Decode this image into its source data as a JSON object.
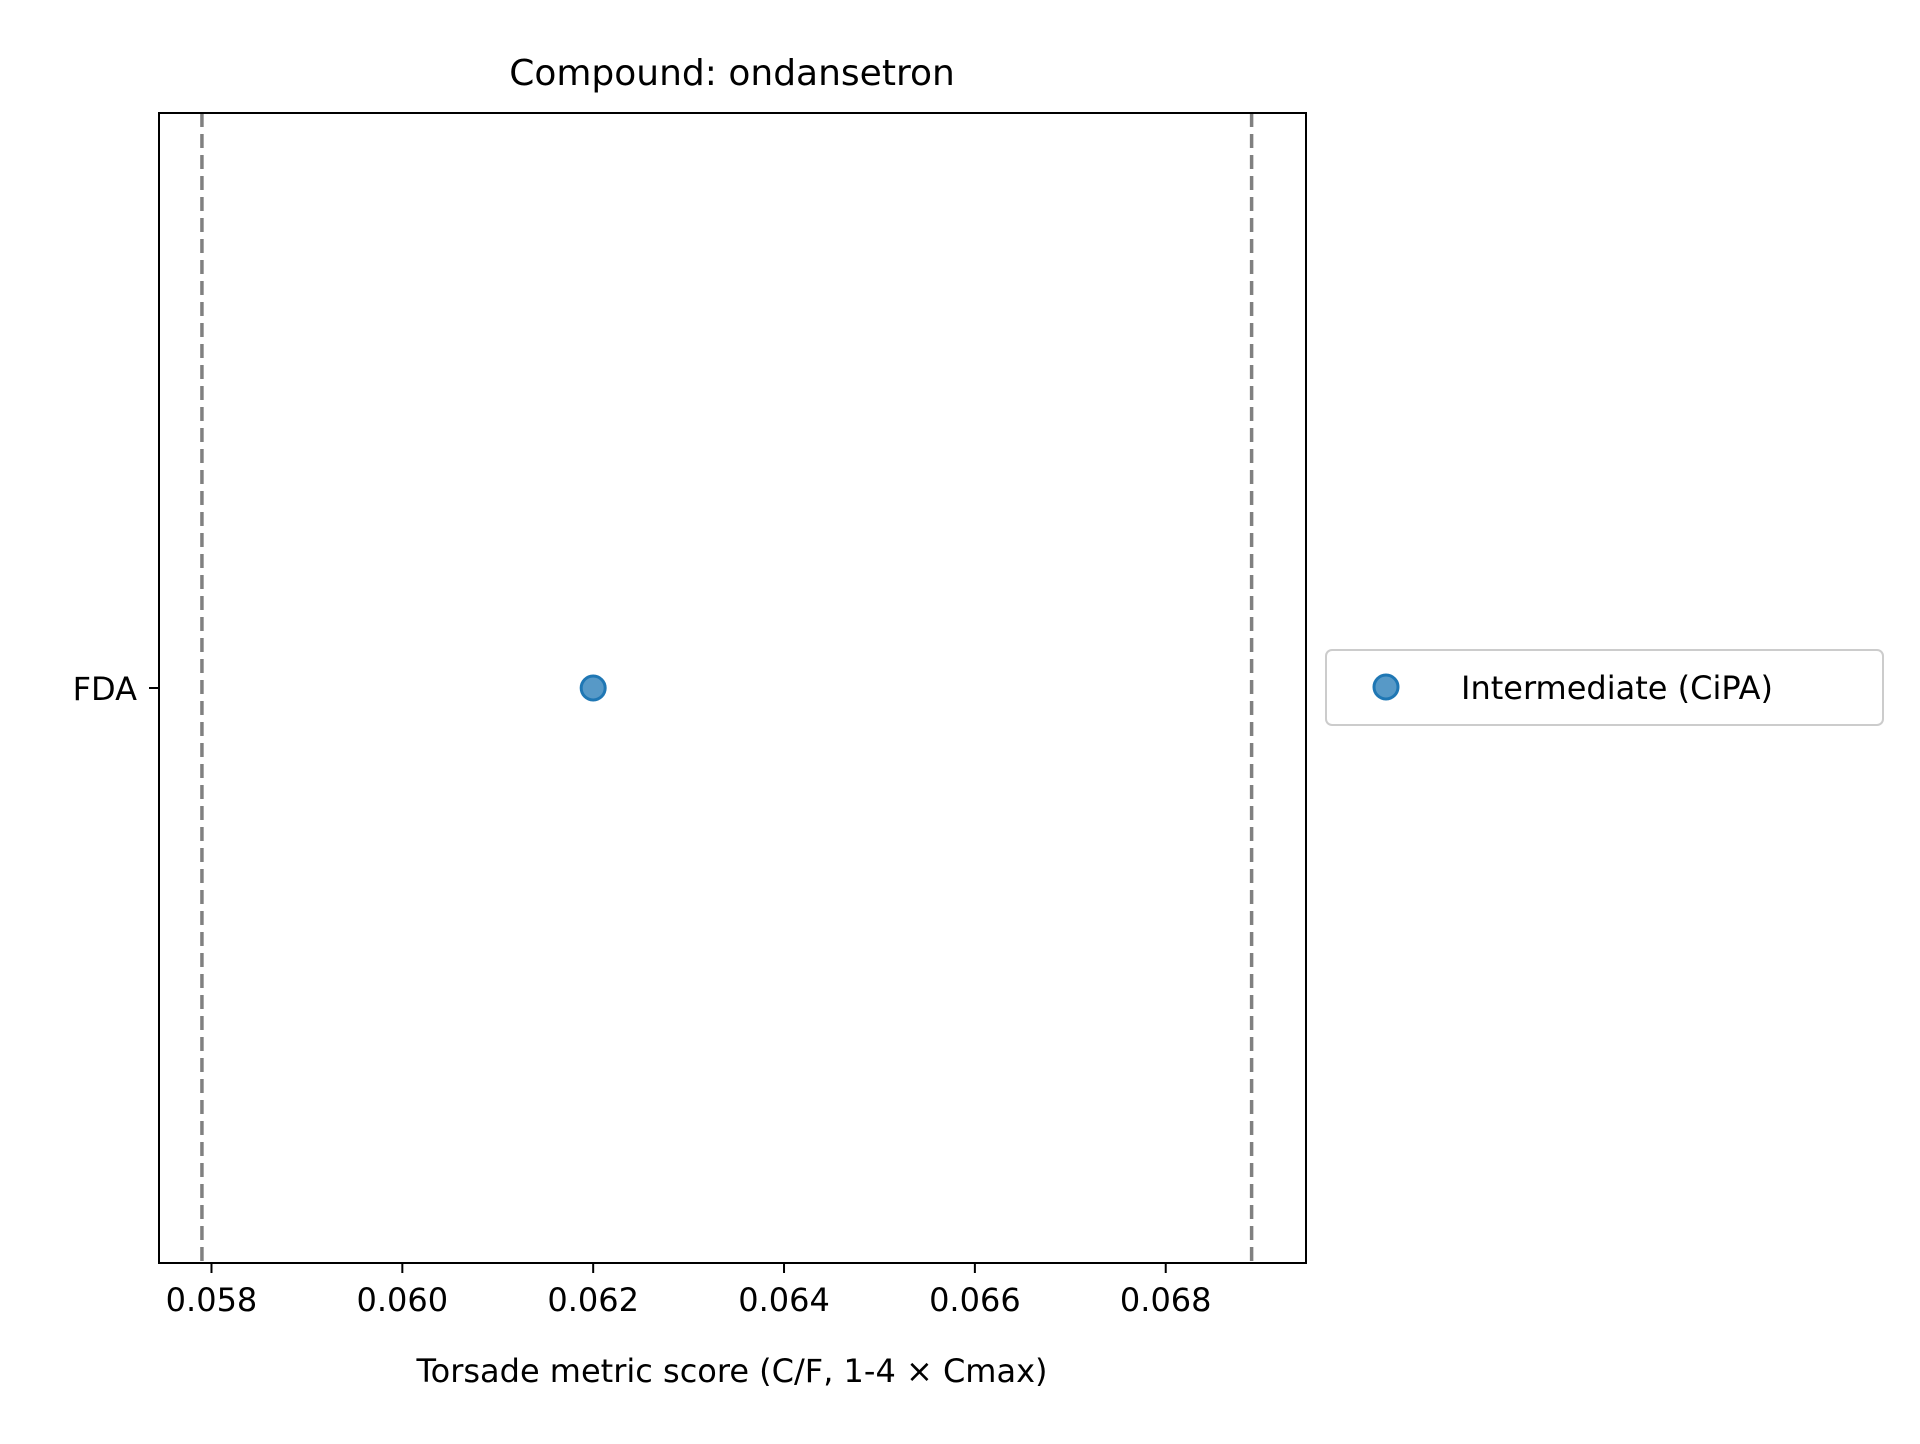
{
  "chart_data": {
    "type": "scatter",
    "title": "Compound: ondansetron",
    "xlabel": "Torsade metric score (C/F, 1-4 × Cmax)",
    "ylabel": "",
    "xlim": [
      0.05745,
      0.06947
    ],
    "x_ticks": [
      0.058,
      0.06,
      0.062,
      0.064,
      0.066,
      0.068
    ],
    "x_tick_labels": [
      "0.058",
      "0.060",
      "0.062",
      "0.064",
      "0.066",
      "0.068"
    ],
    "y_categories": [
      "FDA"
    ],
    "reference_lines": [
      {
        "x": 0.0579,
        "style": "dashed",
        "color": "#808080"
      },
      {
        "x": 0.0689,
        "style": "dashed",
        "color": "#808080"
      }
    ],
    "series": [
      {
        "name": "Intermediate (CiPA)",
        "color": "#1f77b4",
        "points": [
          {
            "x": 0.062,
            "y": "FDA"
          }
        ]
      }
    ],
    "grid": false,
    "legend_position": "outside right"
  }
}
